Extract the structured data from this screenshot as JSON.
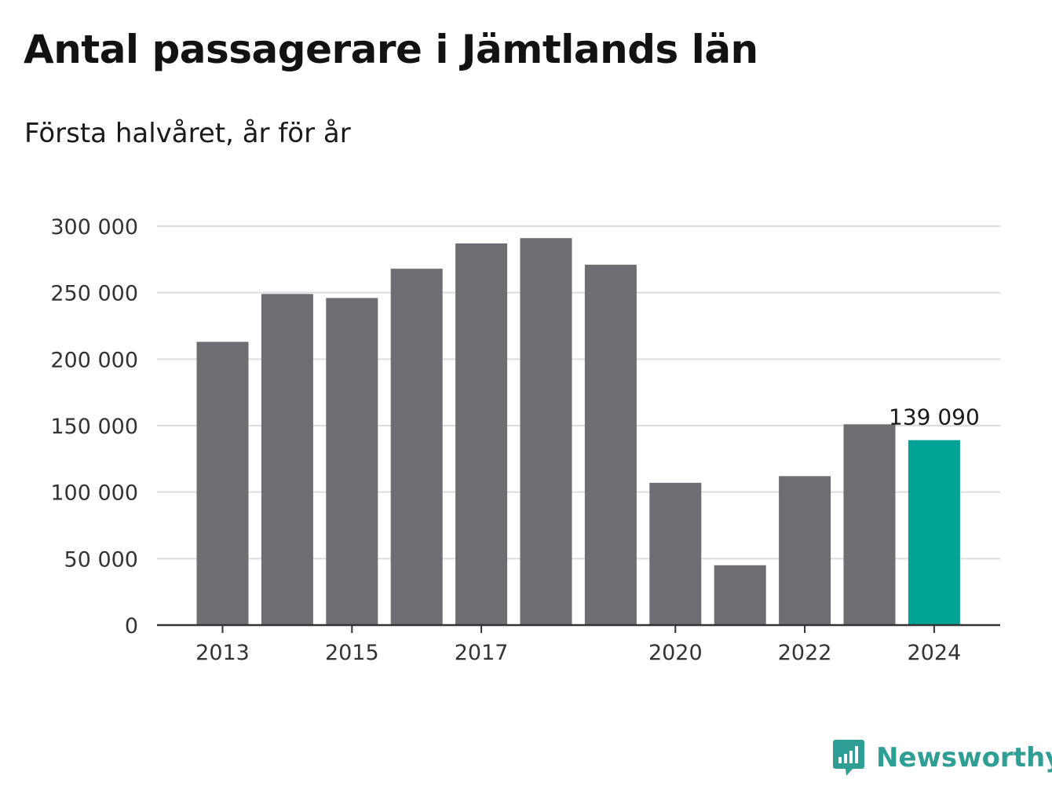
{
  "header": {
    "title": "Antal passagerare i Jämtlands län",
    "subtitle": "Första halvåret, år för år"
  },
  "brand": {
    "name": "Newsworthy",
    "icon": "newsworthy-logo-icon",
    "color": "#2f9e95"
  },
  "colors": {
    "bar": "#6e6d73",
    "highlight": "#00a396",
    "grid": "#dddddd",
    "axis": "#333333"
  },
  "chart_data": {
    "type": "bar",
    "title": "Antal passagerare i Jämtlands län",
    "subtitle": "Första halvåret, år för år",
    "categories": [
      "2013",
      "2014",
      "2015",
      "2016",
      "2017",
      "2018",
      "2019",
      "2020",
      "2021",
      "2022",
      "2023",
      "2024"
    ],
    "values": [
      213000,
      249000,
      246000,
      268000,
      287000,
      291000,
      271000,
      107000,
      45000,
      112000,
      151000,
      139090
    ],
    "highlight_index": 11,
    "highlight_label": "139 090",
    "x_tick_labels": [
      "2013",
      "2015",
      "2017",
      "2020",
      "2022",
      "2024"
    ],
    "y_ticks": [
      0,
      50000,
      100000,
      150000,
      200000,
      250000,
      300000
    ],
    "y_tick_labels": [
      "0",
      "50 000",
      "100 000",
      "150 000",
      "200 000",
      "250 000",
      "300 000"
    ],
    "ylim": [
      0,
      300000
    ],
    "grid": true,
    "legend": "none",
    "xlabel": "",
    "ylabel": ""
  }
}
